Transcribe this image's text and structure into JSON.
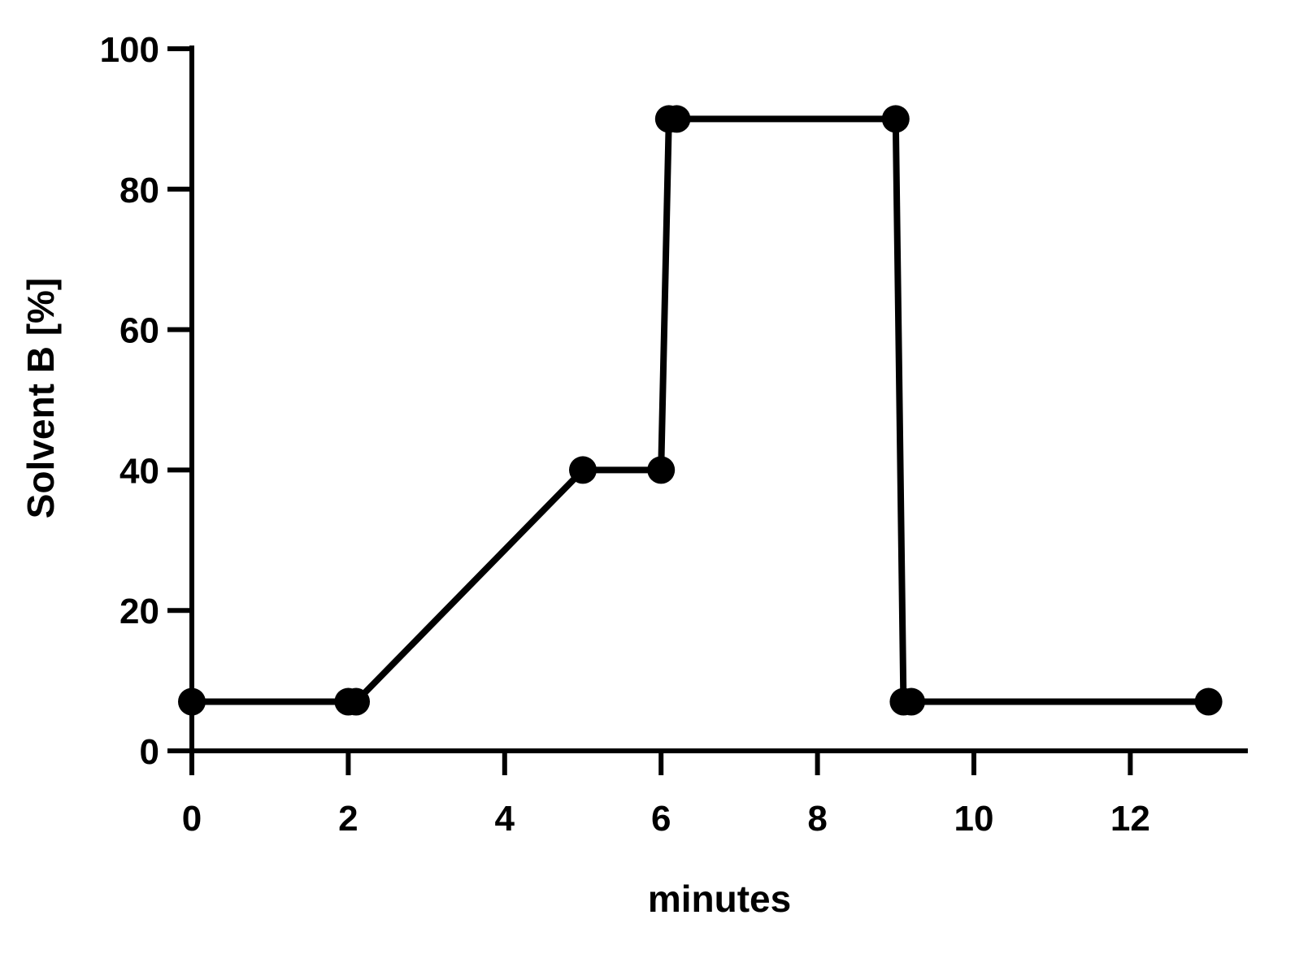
{
  "chart_data": {
    "type": "line",
    "xlabel": "minutes",
    "ylabel": "Solvent B [%]",
    "xlim": [
      0,
      13.5
    ],
    "ylim": [
      0,
      100
    ],
    "x_ticks": [
      0,
      2,
      4,
      6,
      8,
      10,
      12
    ],
    "x_tick_labels": [
      "0",
      "2",
      "4",
      "6",
      "8",
      "10",
      "12"
    ],
    "y_ticks": [
      0,
      20,
      40,
      60,
      80,
      100
    ],
    "y_tick_labels": [
      "0",
      "20",
      "40",
      "60",
      "80",
      "100"
    ],
    "grid": false,
    "series": [
      {
        "color": "#000000",
        "marker": "circle",
        "points": [
          {
            "x": 0,
            "y": 7
          },
          {
            "x": 2,
            "y": 7
          },
          {
            "x": 2.1,
            "y": 7
          },
          {
            "x": 5,
            "y": 40
          },
          {
            "x": 6,
            "y": 40
          },
          {
            "x": 6.1,
            "y": 90
          },
          {
            "x": 6.2,
            "y": 90
          },
          {
            "x": 9,
            "y": 90
          },
          {
            "x": 9.1,
            "y": 7
          },
          {
            "x": 9.2,
            "y": 7
          },
          {
            "x": 13,
            "y": 7
          }
        ]
      }
    ]
  }
}
